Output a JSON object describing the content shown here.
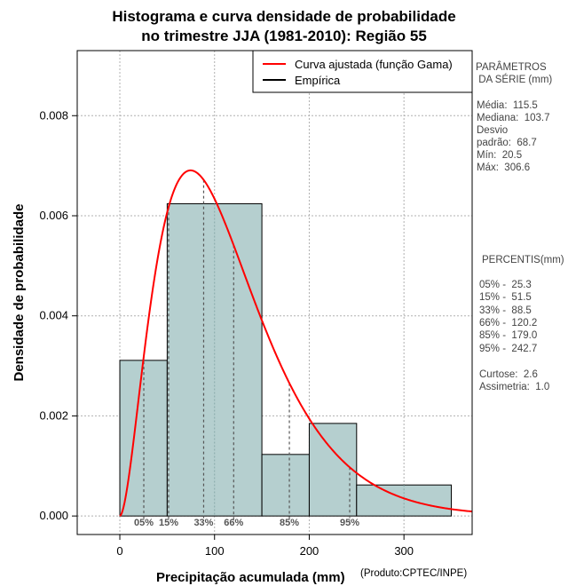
{
  "chart_data": {
    "type": "bar",
    "title_line1": "Histograma e curva densidade de probabilidade",
    "title_line2": "no trimestre JJA (1981-2010): Região 55",
    "xlabel": "Precipitação acumulada (mm)",
    "ylabel": "Densidade de probabilidade",
    "credit": "(Produto:CPTEC/INPE)",
    "xlim": [
      -45,
      372
    ],
    "ylim": [
      -0.00037,
      0.0093
    ],
    "x_ticks": [
      0,
      100,
      200,
      300
    ],
    "x_tick_labels": [
      "0",
      "100",
      "200",
      "300"
    ],
    "y_ticks": [
      0.0,
      0.002,
      0.004,
      0.006,
      0.008
    ],
    "y_tick_labels": [
      "0.000",
      "0.002",
      "0.004",
      "0.006",
      "0.008"
    ],
    "grid": true,
    "bins": [
      {
        "start": 0,
        "end": 50,
        "density": 0.00311
      },
      {
        "start": 50,
        "end": 150,
        "density": 0.00624
      },
      {
        "start": 150,
        "end": 200,
        "density": 0.00123
      },
      {
        "start": 200,
        "end": 250,
        "density": 0.00185
      },
      {
        "start": 250,
        "end": 350,
        "density": 0.00062
      }
    ],
    "gamma_fit": {
      "shape": 2.83,
      "rate": 0.0245,
      "label": "Curva ajustada (função Gama)",
      "color": "#ff0000"
    },
    "empirical": {
      "label": "Empírica",
      "color": "#000000"
    },
    "bar_color": "#b5cfcf",
    "percentile_markers": [
      {
        "label": "05%",
        "value": 25.3
      },
      {
        "label": "15%",
        "value": 51.5
      },
      {
        "label": "33%",
        "value": 88.5
      },
      {
        "label": "66%",
        "value": 120.2
      },
      {
        "label": "85%",
        "value": 179.0
      },
      {
        "label": "95%",
        "value": 242.7
      }
    ],
    "legend_position": "top-right"
  },
  "side_panel": {
    "params_title_1": "PARÂMETROS",
    "params_title_2": " DA SÉRIE (mm)",
    "media": "Média:  115.5",
    "mediana": "Mediana:  103.7",
    "desvio_1": "Desvio",
    "desvio_2": "padrão:  68.7",
    "min": "Mín:  20.5",
    "max": "Máx:  306.6",
    "percentis_title": "PERCENTIS(mm)",
    "p05": "05% -  25.3",
    "p15": "15% -  51.5",
    "p33": "33% -  88.5",
    "p66": "66% -  120.2",
    "p85": "85% -  179.0",
    "p95": "95% -  242.7",
    "curtose": "Curtose:  2.6",
    "assimetria": "Assimetria:  1.0"
  }
}
